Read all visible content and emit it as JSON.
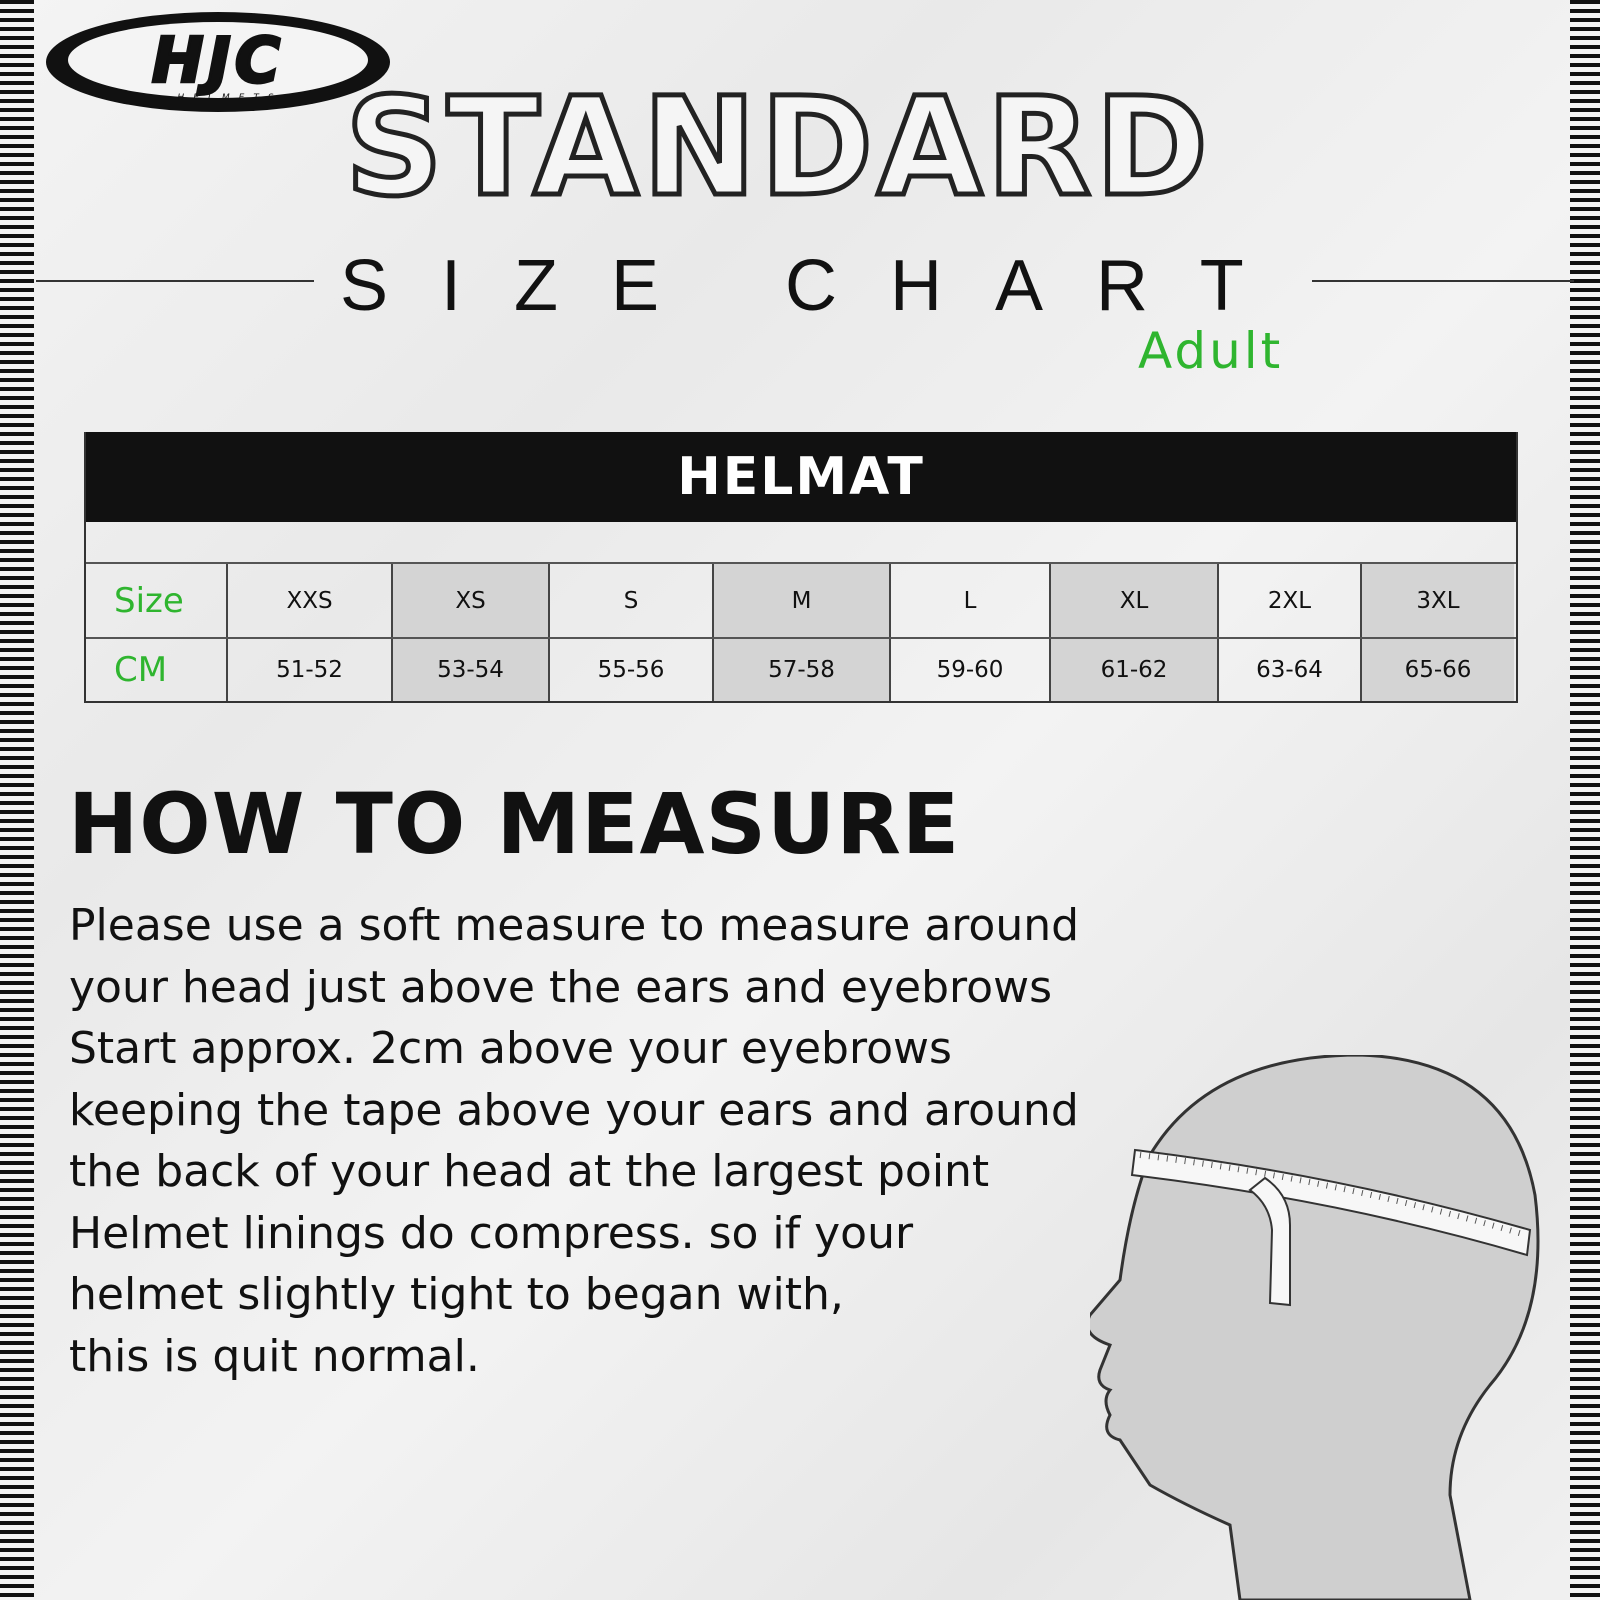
{
  "brand": {
    "logo_text": "HJC",
    "logo_subtext": "HELMETS"
  },
  "title": "STANDARD",
  "subtitle": "SIZE CHART",
  "audience": "Adult",
  "table": {
    "header": "HELMAT",
    "row_labels": [
      "Size",
      "CM"
    ],
    "sizes": [
      "XXS",
      "XS",
      "S",
      "M",
      "L",
      "XL",
      "2XL",
      "3XL"
    ],
    "cm": [
      "51-52",
      "53-54",
      "55-56",
      "57-58",
      "59-60",
      "61-62",
      "63-64",
      "65-66"
    ]
  },
  "how_to": {
    "heading": "HOW TO MEASURE",
    "lines": [
      "Please use a soft measure to measure around",
      "your head just above the ears and eyebrows",
      "Start approx. 2cm above your eyebrows",
      "keeping the tape above your ears and around",
      "the back of your head at the largest point",
      "Helmet linings do compress. so if your",
      "helmet slightly tight to began with,",
      "this is quit normal."
    ]
  },
  "colors": {
    "accent": "#2fb52f",
    "shade": "#d4d4d4",
    "header_bg": "#111111"
  }
}
